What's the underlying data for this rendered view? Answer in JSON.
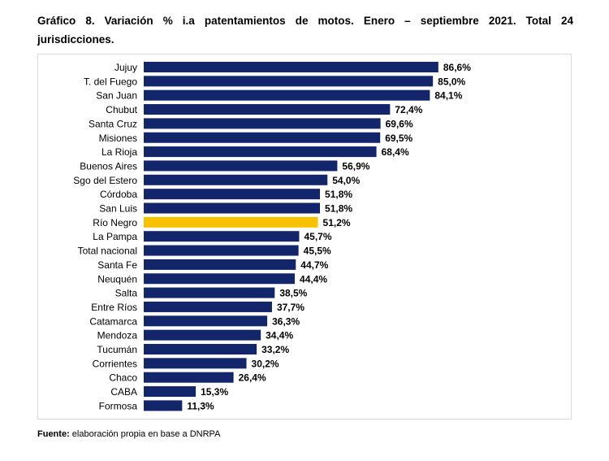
{
  "title": "Gráfico 8. Variación % i.a patentamientos de motos. Enero – septiembre 2021. Total 24 jurisdicciones.",
  "source": {
    "label": "Fuente:",
    "text": " elaboración propia en base a DNRPA"
  },
  "chart_data": {
    "type": "bar",
    "orientation": "horizontal",
    "title": "Gráfico 8. Variación % i.a patentamientos de motos. Enero – septiembre 2021. Total 24 jurisdicciones.",
    "xlabel": "",
    "ylabel": "",
    "xlim": [
      0,
      100
    ],
    "grid": false,
    "categories": [
      "Jujuy",
      "T. del Fuego",
      "San Juan",
      "Chubut",
      "Santa Cruz",
      "Misiones",
      "La Rioja",
      "Buenos Aires",
      "Sgo del Estero",
      "Córdoba",
      "San Luis",
      "Río Negro",
      "La Pampa",
      "Total nacional",
      "Santa Fe",
      "Neuquén",
      "Salta",
      "Entre Ríos",
      "Catamarca",
      "Mendoza",
      "Tucumán",
      "Corrientes",
      "Chaco",
      "CABA",
      "Formosa"
    ],
    "values": [
      86.6,
      85.0,
      84.1,
      72.4,
      69.6,
      69.5,
      68.4,
      56.9,
      54.0,
      51.8,
      51.8,
      51.2,
      45.7,
      45.5,
      44.7,
      44.4,
      38.5,
      37.7,
      36.3,
      34.4,
      33.2,
      30.2,
      26.4,
      15.3,
      11.3
    ],
    "labels": [
      "86,6%",
      "85,0%",
      "84,1%",
      "72,4%",
      "69,6%",
      "69,5%",
      "68,4%",
      "56,9%",
      "54,0%",
      "51,8%",
      "51,8%",
      "51,2%",
      "45,7%",
      "45,5%",
      "44,7%",
      "44,4%",
      "38,5%",
      "37,7%",
      "36,3%",
      "34,4%",
      "33,2%",
      "30,2%",
      "26,4%",
      "15,3%",
      "11,3%"
    ],
    "highlight": "Río Negro",
    "colors": {
      "bar": "#13266b",
      "highlight": "#f7c300"
    }
  }
}
